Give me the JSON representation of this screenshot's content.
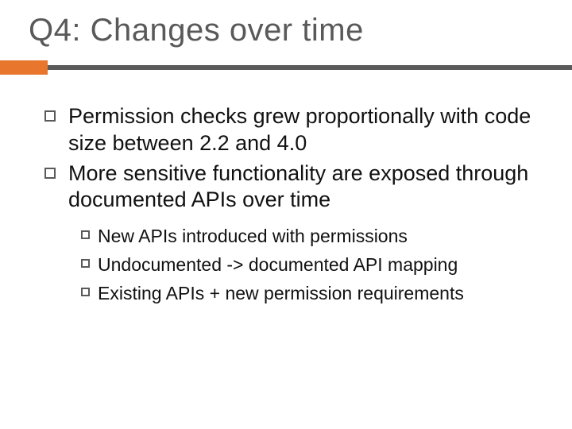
{
  "title": "Q4: Changes over time",
  "title_color": "#595959",
  "title_fontsize": 40,
  "accent_color": "#e8762d",
  "line_color": "#5a5a5a",
  "background_color": "#ffffff",
  "body_color": "#111111",
  "body_fontsize_l1": 27,
  "body_fontsize_l2": 23,
  "bullets": [
    {
      "text": "Permission checks grew proportionally with code size between 2.2 and 4.0"
    },
    {
      "text": "More sensitive functionality are exposed through documented APIs over time"
    }
  ],
  "sub_bullets": [
    {
      "text": "New APIs introduced with permissions"
    },
    {
      "text": "Undocumented -> documented API mapping"
    },
    {
      "text": "Existing APIs + new permission requirements"
    }
  ]
}
